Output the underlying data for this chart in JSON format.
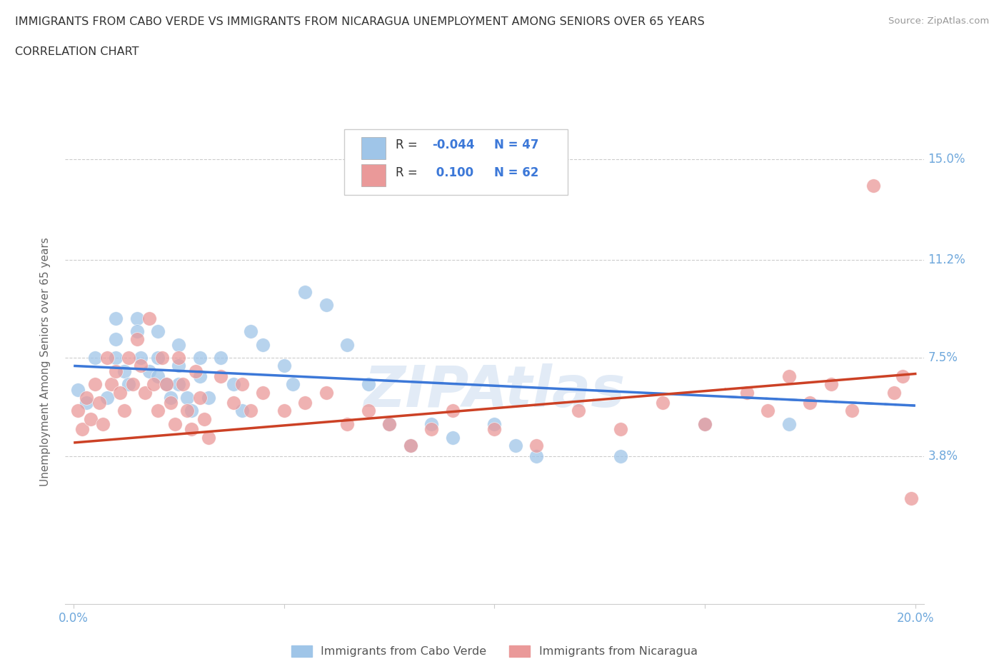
{
  "title_line1": "IMMIGRANTS FROM CABO VERDE VS IMMIGRANTS FROM NICARAGUA UNEMPLOYMENT AMONG SENIORS OVER 65 YEARS",
  "title_line2": "CORRELATION CHART",
  "source": "Source: ZipAtlas.com",
  "ylabel": "Unemployment Among Seniors over 65 years",
  "xlim": [
    -0.002,
    0.202
  ],
  "ylim": [
    -0.018,
    0.165
  ],
  "ytick_vals": [
    0.038,
    0.075,
    0.112,
    0.15
  ],
  "ytick_labels_right": [
    "3.8%",
    "7.5%",
    "11.2%",
    "15.0%"
  ],
  "xtick_vals": [
    0.0,
    0.05,
    0.1,
    0.15,
    0.2
  ],
  "xtick_labels": [
    "0.0%",
    "",
    "",
    "",
    "20.0%"
  ],
  "hgrid_values": [
    0.038,
    0.075,
    0.112,
    0.15
  ],
  "color_blue": "#9fc5e8",
  "color_pink": "#ea9999",
  "color_blue_line": "#3c78d8",
  "color_pink_line": "#cc4125",
  "color_label": "#6fa8dc",
  "cabo_verde_x": [
    0.001,
    0.003,
    0.005,
    0.008,
    0.01,
    0.01,
    0.01,
    0.012,
    0.013,
    0.015,
    0.015,
    0.016,
    0.018,
    0.02,
    0.02,
    0.02,
    0.022,
    0.023,
    0.025,
    0.025,
    0.025,
    0.027,
    0.028,
    0.03,
    0.03,
    0.032,
    0.035,
    0.038,
    0.04,
    0.042,
    0.045,
    0.05,
    0.052,
    0.055,
    0.06,
    0.065,
    0.07,
    0.075,
    0.08,
    0.085,
    0.09,
    0.1,
    0.105,
    0.11,
    0.13,
    0.15,
    0.17
  ],
  "cabo_verde_y": [
    0.063,
    0.058,
    0.075,
    0.06,
    0.09,
    0.082,
    0.075,
    0.07,
    0.065,
    0.09,
    0.085,
    0.075,
    0.07,
    0.085,
    0.075,
    0.068,
    0.065,
    0.06,
    0.08,
    0.072,
    0.065,
    0.06,
    0.055,
    0.075,
    0.068,
    0.06,
    0.075,
    0.065,
    0.055,
    0.085,
    0.08,
    0.072,
    0.065,
    0.1,
    0.095,
    0.08,
    0.065,
    0.05,
    0.042,
    0.05,
    0.045,
    0.05,
    0.042,
    0.038,
    0.038,
    0.05,
    0.05
  ],
  "nicaragua_x": [
    0.001,
    0.002,
    0.003,
    0.004,
    0.005,
    0.006,
    0.007,
    0.008,
    0.009,
    0.01,
    0.011,
    0.012,
    0.013,
    0.014,
    0.015,
    0.016,
    0.017,
    0.018,
    0.019,
    0.02,
    0.021,
    0.022,
    0.023,
    0.024,
    0.025,
    0.026,
    0.027,
    0.028,
    0.029,
    0.03,
    0.031,
    0.032,
    0.035,
    0.038,
    0.04,
    0.042,
    0.045,
    0.05,
    0.055,
    0.06,
    0.065,
    0.07,
    0.075,
    0.08,
    0.085,
    0.09,
    0.1,
    0.11,
    0.12,
    0.13,
    0.14,
    0.15,
    0.16,
    0.165,
    0.17,
    0.175,
    0.18,
    0.185,
    0.19,
    0.195,
    0.197,
    0.199
  ],
  "nicaragua_y": [
    0.055,
    0.048,
    0.06,
    0.052,
    0.065,
    0.058,
    0.05,
    0.075,
    0.065,
    0.07,
    0.062,
    0.055,
    0.075,
    0.065,
    0.082,
    0.072,
    0.062,
    0.09,
    0.065,
    0.055,
    0.075,
    0.065,
    0.058,
    0.05,
    0.075,
    0.065,
    0.055,
    0.048,
    0.07,
    0.06,
    0.052,
    0.045,
    0.068,
    0.058,
    0.065,
    0.055,
    0.062,
    0.055,
    0.058,
    0.062,
    0.05,
    0.055,
    0.05,
    0.042,
    0.048,
    0.055,
    0.048,
    0.042,
    0.055,
    0.048,
    0.058,
    0.05,
    0.062,
    0.055,
    0.068,
    0.058,
    0.065,
    0.055,
    0.14,
    0.062,
    0.068,
    0.022
  ],
  "cabo_verde_trend_x": [
    0.0,
    0.2
  ],
  "cabo_verde_trend_y": [
    0.072,
    0.057
  ],
  "nicaragua_trend_x": [
    0.0,
    0.2
  ],
  "nicaragua_trend_y": [
    0.043,
    0.069
  ]
}
